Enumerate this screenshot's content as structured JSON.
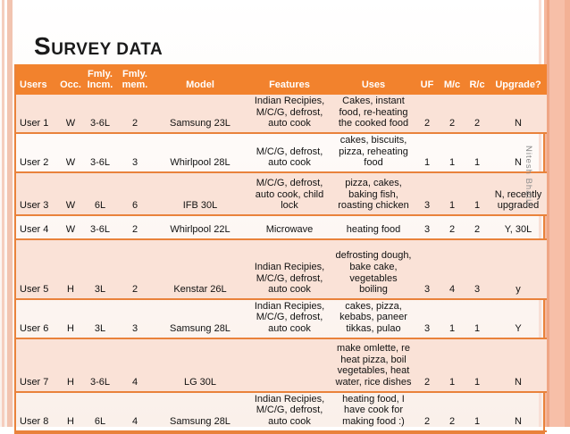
{
  "slide": {
    "title": {
      "initial": "S",
      "rest": "URVEY DATA"
    },
    "watermark": "Nitesh Bhatia"
  },
  "colors": {
    "header_bg": "#F2822D",
    "row_alt_bg": "#FAE2D7",
    "border_orange": "#E9823B",
    "title_color": "#1A1A1A",
    "watermark_color": "#8B8B8B"
  },
  "table": {
    "columns": [
      {
        "key": "users",
        "label": "Users"
      },
      {
        "key": "occ",
        "label": "Occ."
      },
      {
        "key": "incm",
        "label": "Fmly.\nIncm."
      },
      {
        "key": "mem",
        "label": "Fmly.\nmem."
      },
      {
        "key": "model",
        "label": "Model"
      },
      {
        "key": "features",
        "label": "Features"
      },
      {
        "key": "uses",
        "label": "Uses"
      },
      {
        "key": "uf",
        "label": "UF"
      },
      {
        "key": "mc",
        "label": "M/c"
      },
      {
        "key": "rc",
        "label": "R/c"
      },
      {
        "key": "upgrade",
        "label": "Upgrade?"
      }
    ],
    "rows": [
      [
        "User 1",
        "W",
        "3-6L",
        "2",
        "Samsung 23L",
        "Indian Recipies, M/C/G, defrost, auto cook",
        "Cakes, instant food, re-heating the cooked food",
        "2",
        "2",
        "2",
        "N"
      ],
      [
        "User 2",
        "W",
        "3-6L",
        "3",
        "Whirlpool 28L",
        "M/C/G, defrost, auto cook",
        "cakes, biscuits, pizza, reheating food",
        "1",
        "1",
        "1",
        "N"
      ],
      [
        "User 3",
        "W",
        "6L",
        "6",
        "IFB 30L",
        "M/C/G, defrost, auto cook, child lock",
        "pizza, cakes, baking fish, roasting chicken",
        "3",
        "1",
        "1",
        "N, recently upgraded"
      ],
      [
        "User 4",
        "W",
        "3-6L",
        "2",
        "Whirlpool 22L",
        "Microwave",
        "heating food",
        "3",
        "2",
        "2",
        "Y, 30L"
      ],
      [
        "User 5",
        "H",
        "3L",
        "2",
        "Kenstar 26L",
        "Indian Recipies, M/C/G, defrost, auto cook",
        "defrosting dough, bake cake, vegetables boiling",
        "3",
        "4",
        "3",
        "y"
      ],
      [
        "User 6",
        "H",
        "3L",
        "3",
        "Samsung 28L",
        "Indian Recipies, M/C/G, defrost, auto cook",
        "cakes, pizza, kebabs, paneer tikkas, pulao",
        "3",
        "1",
        "1",
        "Y"
      ],
      [
        "User 7",
        "H",
        "3-6L",
        "4",
        "LG 30L",
        "",
        "make omlette, re heat pizza, boil vegetables, heat water, rice dishes",
        "2",
        "1",
        "1",
        "N"
      ],
      [
        "User 8",
        "H",
        "6L",
        "4",
        "Samsung 28L",
        "Indian Recipies, M/C/G, defrost, auto cook",
        "heating food, I have cook for making food :)",
        "2",
        "2",
        "1",
        "N"
      ]
    ]
  }
}
